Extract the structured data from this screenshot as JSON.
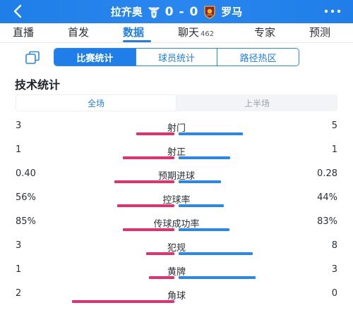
{
  "header": {
    "home_team": "拉齐奥",
    "away_team": "罗马",
    "score": "0 - 0"
  },
  "tabs": [
    {
      "label": "直播",
      "count": ""
    },
    {
      "label": "首发",
      "count": ""
    },
    {
      "label": "数据",
      "count": ""
    },
    {
      "label": "聊天",
      "count": "462"
    },
    {
      "label": "专家",
      "count": ""
    },
    {
      "label": "预测",
      "count": ""
    }
  ],
  "active_tab": "数据",
  "subtabs": [
    "比赛统计",
    "球员统计",
    "路径热区"
  ],
  "active_subtab": "比赛统计",
  "section_title": "技术统计",
  "period_toggle": [
    "全场",
    "上半场"
  ],
  "active_period": "全场",
  "colors": {
    "brand": "#1f7ee8",
    "home_bar": "#e2326d",
    "away_bar": "#2a88ea"
  },
  "stats": [
    {
      "label": "射门",
      "home": "3",
      "away": "5",
      "home_share": 0.375,
      "away_share": 0.625
    },
    {
      "label": "射正",
      "home": "1",
      "away": "1",
      "home_share": 0.5,
      "away_share": 0.5
    },
    {
      "label": "预期进球",
      "home": "0.40",
      "away": "0.28",
      "home_share": 0.588,
      "away_share": 0.412
    },
    {
      "label": "控球率",
      "home": "56%",
      "away": "44%",
      "home_share": 0.56,
      "away_share": 0.44
    },
    {
      "label": "传球成功率",
      "home": "85%",
      "away": "83%",
      "home_share": 0.506,
      "away_share": 0.494
    },
    {
      "label": "犯规",
      "home": "3",
      "away": "8",
      "home_share": 0.273,
      "away_share": 0.727
    },
    {
      "label": "黄牌",
      "home": "1",
      "away": "3",
      "home_share": 0.25,
      "away_share": 0.75
    },
    {
      "label": "角球",
      "home": "2",
      "away": "0",
      "home_share": 1.0,
      "away_share": 0.0
    }
  ]
}
